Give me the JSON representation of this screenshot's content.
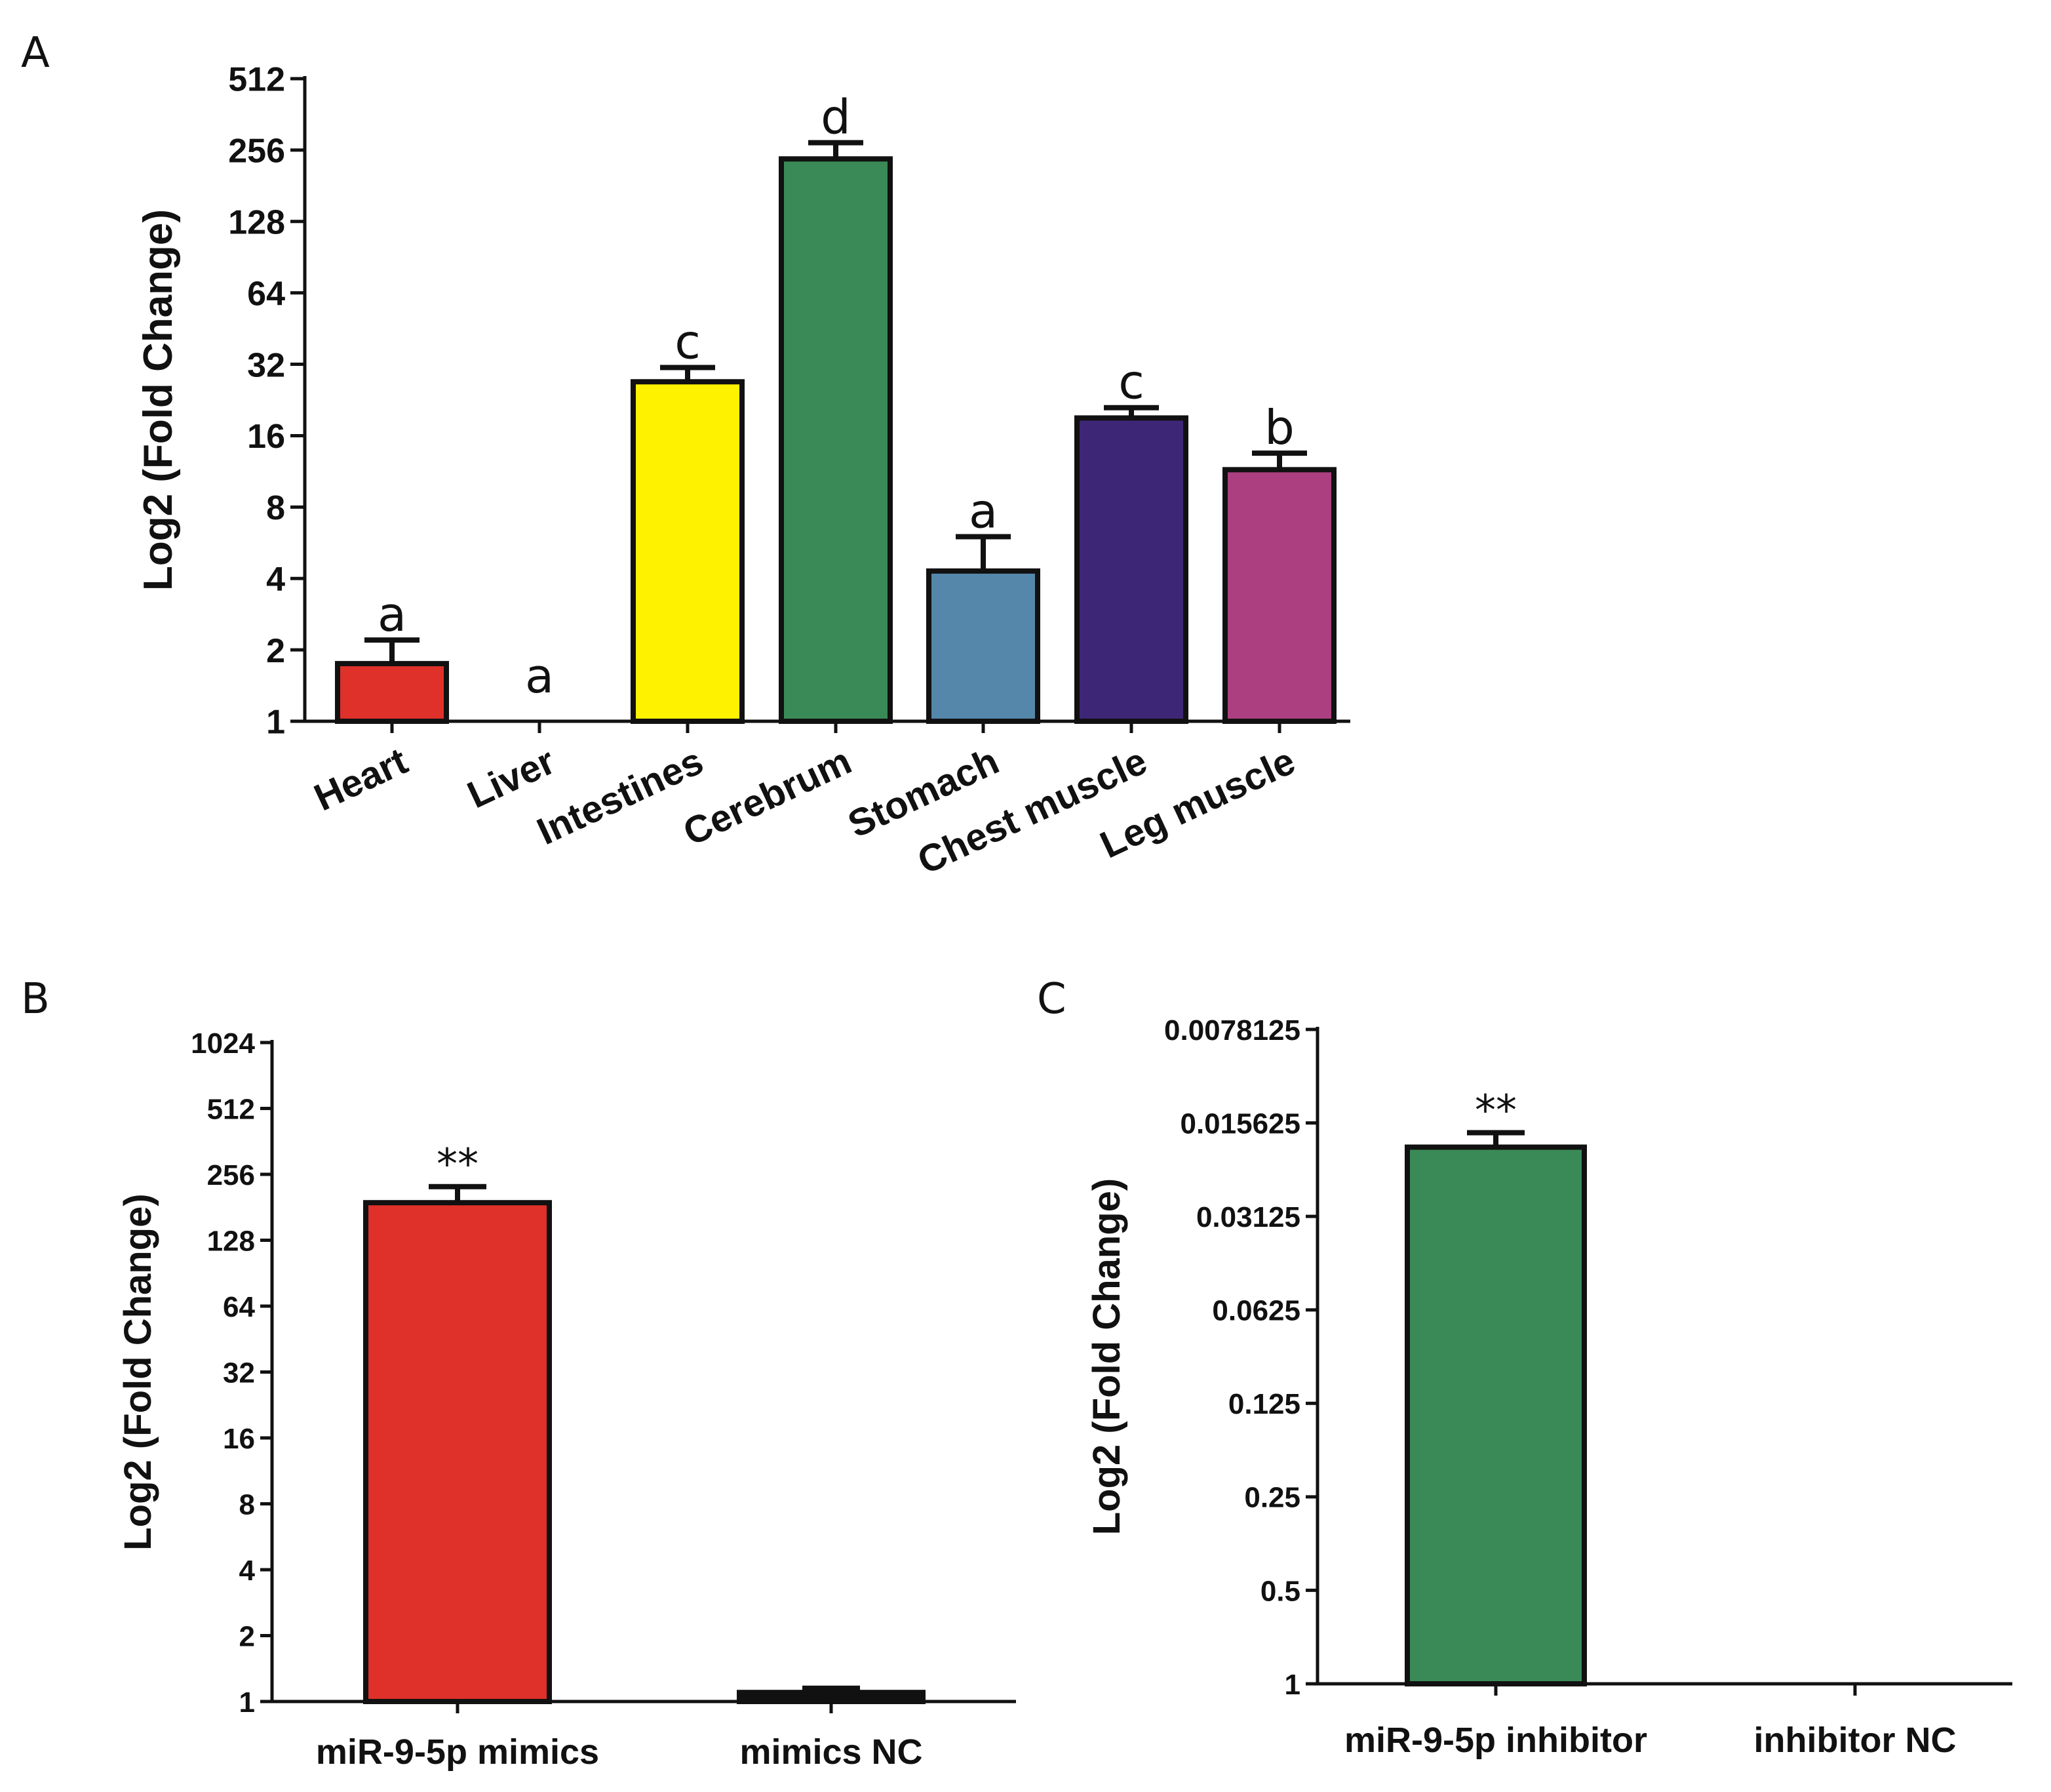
{
  "colors": {
    "red": "#e0302a",
    "yellow": "#fff200",
    "green": "#3a8a57",
    "steel": "#5487aa",
    "indigo": "#3e2677",
    "magenta": "#ab3f80",
    "black": "#111111"
  },
  "chart_data": [
    {
      "panel": "A",
      "type": "bar",
      "scale": "log2",
      "ylabel": "Log2 (Fold Change)",
      "yticks": [
        1,
        2,
        4,
        8,
        16,
        32,
        64,
        128,
        256,
        512
      ],
      "ytick_labels": [
        "1",
        "2",
        "4",
        "8",
        "16",
        "32",
        "64",
        "128",
        "256",
        "512"
      ],
      "ylim": [
        1,
        512
      ],
      "categories": [
        "Heart",
        "Liver",
        "Intestines",
        "Cerebrum",
        "Stomach",
        "Chest muscle",
        "Leg muscle"
      ],
      "values": [
        1.75,
        1.0,
        27,
        235,
        4.3,
        19,
        11.5
      ],
      "errors": [
        2.2,
        1.0,
        31,
        275,
        6.0,
        21,
        13.5
      ],
      "significance": [
        "a",
        "a",
        "c",
        "d",
        "a",
        "c",
        "b"
      ],
      "bar_colors": [
        "red",
        "none",
        "yellow",
        "green",
        "steel",
        "indigo",
        "magenta"
      ]
    },
    {
      "panel": "B",
      "type": "bar",
      "scale": "log2",
      "ylabel": "Log2 (Fold Change)",
      "yticks": [
        1,
        2,
        4,
        8,
        16,
        32,
        64,
        128,
        256,
        512,
        1024
      ],
      "ytick_labels": [
        "1",
        "2",
        "4",
        "8",
        "16",
        "32",
        "64",
        "128",
        "256",
        "512",
        "1024"
      ],
      "ylim": [
        1,
        1024
      ],
      "categories": [
        "miR-9-5p mimics",
        "mimics NC"
      ],
      "values": [
        190,
        1.1
      ],
      "errors": [
        225,
        1.15
      ],
      "significance": [
        "**",
        ""
      ],
      "bar_colors": [
        "red",
        "black"
      ]
    },
    {
      "panel": "C",
      "type": "bar",
      "scale": "log2_reversed",
      "ylabel": "Log2 (Fold Change)",
      "yticks": [
        1,
        0.5,
        0.25,
        0.125,
        0.0625,
        0.03125,
        0.015625,
        0.0078125
      ],
      "ytick_labels": [
        "1",
        "0.5",
        "0.25",
        "0.125",
        "0.0625",
        "0.03125",
        "0.015625",
        "0.0078125"
      ],
      "ylim": [
        1,
        0.0078125
      ],
      "categories": [
        "miR-9-5p inhibitor",
        "inhibitor NC"
      ],
      "values": [
        0.0187,
        1.0
      ],
      "errors": [
        0.0168,
        1.0
      ],
      "significance": [
        "**",
        ""
      ],
      "bar_colors": [
        "green",
        "none"
      ]
    }
  ]
}
